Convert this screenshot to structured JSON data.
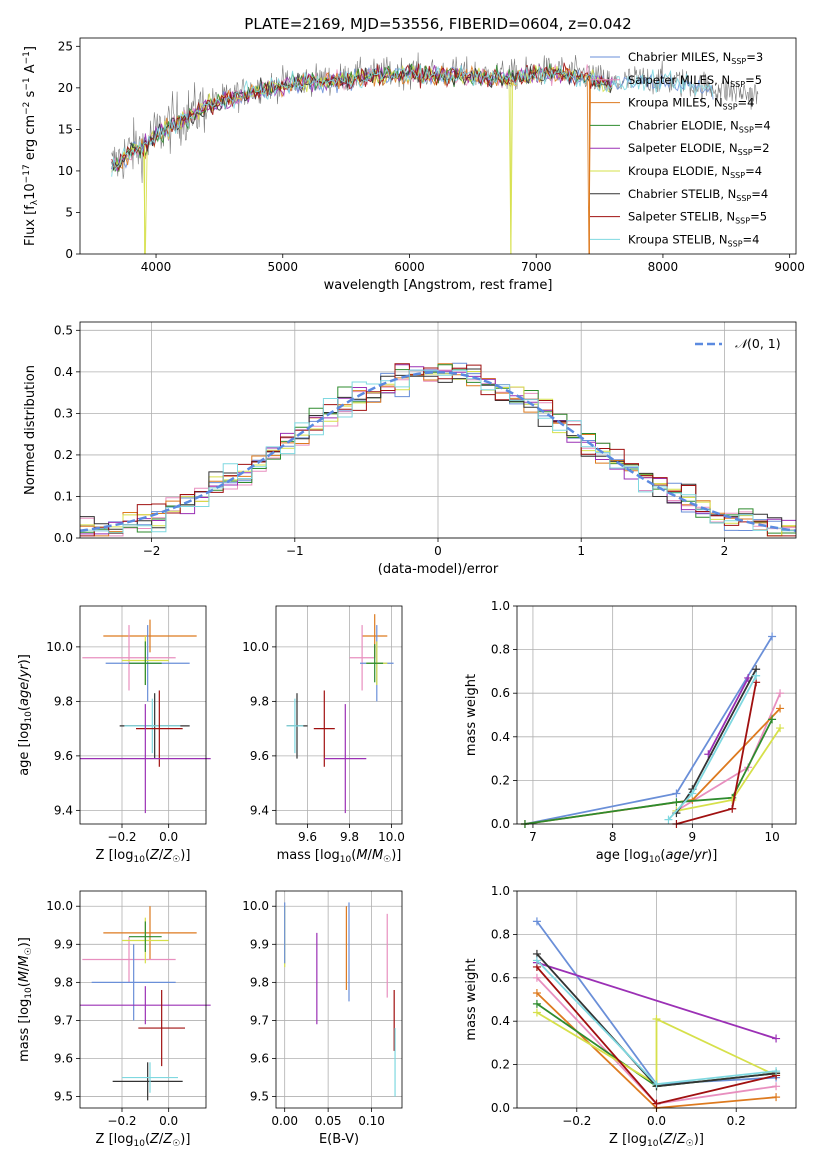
{
  "colors": {
    "Chabrier MILES": "#6a8fd8",
    "Salpeter MILES": "#e88fbf",
    "Kroupa MILES": "#dd7a1f",
    "Chabrier ELODIE": "#2e8b2e",
    "Salpeter ELODIE": "#9b30b5",
    "Kroupa ELODIE": "#d6e04a",
    "Chabrier STELIB": "#333333",
    "Salpeter STELIB": "#a01010",
    "Kroupa STELIB": "#7fd8e0"
  },
  "chart_data": [
    {
      "type": "line",
      "title": "PLATE=2169, MJD=53556, FIBERID=0604, z=0.042",
      "xlabel": "wavelength [Angstrom, rest frame]",
      "ylabel": "Flux [f_λ10^-17 erg cm^-2 s^-1 A^-1]",
      "xlim": [
        3400,
        9050
      ],
      "ylim": [
        0,
        26
      ],
      "xticks": [
        "4000",
        "5000",
        "6000",
        "7000",
        "8000",
        "9000"
      ],
      "yticks": [
        "0",
        "5",
        "10",
        "15",
        "20",
        "25"
      ],
      "legend_position": "top-right",
      "legend": [
        {
          "model": "Chabrier MILES",
          "label": "Chabrier MILES, N",
          "sub": "SSP",
          "n": "=3"
        },
        {
          "model": "Salpeter MILES",
          "label": "Salpeter MILES, N",
          "sub": "SSP",
          "n": "=5"
        },
        {
          "model": "Kroupa MILES",
          "label": "Kroupa MILES, N",
          "sub": "SSP",
          "n": "=4"
        },
        {
          "model": "Chabrier ELODIE",
          "label": "Chabrier ELODIE, N",
          "sub": "SSP",
          "n": "=4"
        },
        {
          "model": "Salpeter ELODIE",
          "label": "Salpeter ELODIE, N",
          "sub": "SSP",
          "n": "=2"
        },
        {
          "model": "Kroupa ELODIE",
          "label": "Kroupa ELODIE, N",
          "sub": "SSP",
          "n": "=4"
        },
        {
          "model": "Chabrier STELIB",
          "label": "Chabrier STELIB, N",
          "sub": "SSP",
          "n": "=4"
        },
        {
          "model": "Salpeter STELIB",
          "label": "Salpeter STELIB, N",
          "sub": "SSP",
          "n": "=5"
        },
        {
          "model": "Kroupa STELIB",
          "label": "Kroupa STELIB, N",
          "sub": "SSP",
          "n": "=4"
        }
      ],
      "spectrum_envelope": {
        "x": [
          3650,
          3720,
          3800,
          3900,
          4000,
          4100,
          4200,
          4300,
          4400,
          4600,
          4800,
          5000,
          5200,
          5400,
          5600,
          5800,
          6000,
          6200,
          6400,
          6600,
          6800,
          7000,
          7200,
          7400,
          7600,
          7800,
          8000,
          8200,
          8400,
          8600,
          8800
        ],
        "y": [
          10.5,
          11.5,
          12.5,
          13.0,
          14.5,
          15.5,
          16.5,
          17.0,
          18.0,
          19.0,
          20.0,
          20.5,
          21.0,
          21.0,
          21.5,
          21.8,
          22.0,
          21.8,
          21.8,
          21.5,
          21.5,
          22.0,
          22.0,
          21.5,
          20.5,
          21.0,
          21.0,
          20.5,
          20.0,
          19.5,
          19.0
        ]
      },
      "dips": [
        {
          "model": "Kroupa ELODIE",
          "x": 3910,
          "y": 0.0
        },
        {
          "model": "Kroupa ELODIE",
          "x": 6800,
          "y": 0.0
        },
        {
          "model": "Kroupa MILES",
          "x": 7420,
          "y": 0.0
        }
      ]
    },
    {
      "type": "histogram",
      "xlabel": "(data-model)/error",
      "ylabel": "Normed distribution",
      "xlim": [
        -2.5,
        2.5
      ],
      "ylim": [
        0,
        0.52
      ],
      "xticks": [
        "−2",
        "−1",
        "0",
        "1",
        "2"
      ],
      "yticks": [
        "0.0",
        "0.1",
        "0.2",
        "0.3",
        "0.4",
        "0.5"
      ],
      "bin_width": 0.1,
      "grid": true,
      "legend_label": "N(0,1)",
      "reference_curve": "normal(0,1)"
    },
    {
      "type": "scatter",
      "xlabel": "Z [log10(Z/Z☉)]",
      "ylabel": "age  [log10(age/yr)]",
      "xlim": [
        -0.38,
        0.16
      ],
      "ylim": [
        9.35,
        10.15
      ],
      "xticks": [
        "−0.2",
        "0.0"
      ],
      "yticks": [
        "9.4",
        "9.6",
        "9.8",
        "10.0"
      ],
      "points": [
        {
          "model": "Kroupa MILES",
          "x": -0.08,
          "y": 10.04,
          "xerr": 0.2,
          "yerr": 0.06
        },
        {
          "model": "Salpeter MILES",
          "x": -0.17,
          "y": 9.96,
          "xerr": 0.2,
          "yerr": 0.12
        },
        {
          "model": "Chabrier MILES",
          "x": -0.09,
          "y": 9.94,
          "xerr": 0.18,
          "yerr": 0.14
        },
        {
          "model": "Kroupa ELODIE",
          "x": -0.1,
          "y": 9.95,
          "xerr": 0.1,
          "yerr": 0.09
        },
        {
          "model": "Chabrier ELODIE",
          "x": -0.1,
          "y": 9.94,
          "xerr": 0.07,
          "yerr": 0.08
        },
        {
          "model": "Chabrier STELIB",
          "x": -0.06,
          "y": 9.71,
          "xerr": 0.15,
          "yerr": 0.12
        },
        {
          "model": "Kroupa STELIB",
          "x": -0.07,
          "y": 9.71,
          "xerr": 0.12,
          "yerr": 0.1
        },
        {
          "model": "Salpeter STELIB",
          "x": -0.04,
          "y": 9.7,
          "xerr": 0.1,
          "yerr": 0.14
        },
        {
          "model": "Salpeter ELODIE",
          "x": -0.1,
          "y": 9.59,
          "xerr": 0.28,
          "yerr": 0.2
        }
      ]
    },
    {
      "type": "scatter",
      "xlabel": "mass [log10(M/M☉)]",
      "ylabel": "",
      "xlim": [
        9.45,
        10.05
      ],
      "ylim": [
        9.35,
        10.15
      ],
      "xticks": [
        "9.6",
        "9.8",
        "10.0"
      ],
      "yticks": [
        "9.4",
        "9.6",
        "9.8",
        "10.0"
      ],
      "points": [
        {
          "model": "Kroupa MILES",
          "x": 9.92,
          "y": 10.04,
          "xerr": 0.06,
          "yerr": 0.08
        },
        {
          "model": "Salpeter MILES",
          "x": 9.86,
          "y": 9.96,
          "xerr": 0.06,
          "yerr": 0.12
        },
        {
          "model": "Chabrier MILES",
          "x": 9.93,
          "y": 9.94,
          "xerr": 0.08,
          "yerr": 0.14
        },
        {
          "model": "Kroupa ELODIE",
          "x": 9.93,
          "y": 9.94,
          "xerr": 0.05,
          "yerr": 0.08
        },
        {
          "model": "Chabrier ELODIE",
          "x": 9.92,
          "y": 9.94,
          "xerr": 0.04,
          "yerr": 0.07
        },
        {
          "model": "Chabrier STELIB",
          "x": 9.55,
          "y": 9.71,
          "xerr": 0.05,
          "yerr": 0.12
        },
        {
          "model": "Kroupa STELIB",
          "x": 9.54,
          "y": 9.71,
          "xerr": 0.04,
          "yerr": 0.1
        },
        {
          "model": "Salpeter STELIB",
          "x": 9.68,
          "y": 9.7,
          "xerr": 0.05,
          "yerr": 0.14
        },
        {
          "model": "Salpeter ELODIE",
          "x": 9.78,
          "y": 9.59,
          "xerr": 0.1,
          "yerr": 0.2
        }
      ]
    },
    {
      "type": "line",
      "xlabel": "age  [log10(age/yr)]",
      "ylabel": "mass weight",
      "xlim": [
        6.8,
        10.3
      ],
      "ylim": [
        0,
        1.0
      ],
      "xticks": [
        "7",
        "8",
        "9",
        "10"
      ],
      "yticks": [
        "0.0",
        "0.2",
        "0.4",
        "0.6",
        "0.8",
        "1.0"
      ],
      "grid": true,
      "series": [
        {
          "model": "Chabrier MILES",
          "x": [
            6.9,
            8.8,
            10.0
          ],
          "y": [
            0.0,
            0.14,
            0.86
          ]
        },
        {
          "model": "Salpeter MILES",
          "x": [
            8.8,
            9.7,
            10.1
          ],
          "y": [
            0.06,
            0.26,
            0.6
          ]
        },
        {
          "model": "Kroupa MILES",
          "x": [
            6.9,
            9.0,
            10.1
          ],
          "y": [
            0.0,
            0.11,
            0.53
          ]
        },
        {
          "model": "Chabrier ELODIE",
          "x": [
            6.9,
            8.8,
            9.5,
            10.0
          ],
          "y": [
            0.0,
            0.1,
            0.12,
            0.48
          ]
        },
        {
          "model": "Salpeter ELODIE",
          "x": [
            9.2,
            9.7
          ],
          "y": [
            0.32,
            0.67
          ]
        },
        {
          "model": "Kroupa ELODIE",
          "x": [
            8.8,
            9.5,
            10.1
          ],
          "y": [
            0.06,
            0.11,
            0.44
          ]
        },
        {
          "model": "Chabrier STELIB",
          "x": [
            8.8,
            9.0,
            9.8
          ],
          "y": [
            0.05,
            0.16,
            0.71
          ]
        },
        {
          "model": "Salpeter STELIB",
          "x": [
            8.8,
            9.5,
            9.8
          ],
          "y": [
            0.0,
            0.07,
            0.65
          ]
        },
        {
          "model": "Kroupa STELIB",
          "x": [
            8.7,
            9.0,
            9.8
          ],
          "y": [
            0.02,
            0.14,
            0.68
          ]
        }
      ]
    },
    {
      "type": "scatter",
      "xlabel": "Z [log10(Z/Z☉)]",
      "ylabel": "mass [log10(M/M☉)]",
      "xlim": [
        -0.38,
        0.16
      ],
      "ylim": [
        9.47,
        10.04
      ],
      "xticks": [
        "−0.2",
        "0.0"
      ],
      "yticks": [
        "9.5",
        "9.6",
        "9.7",
        "9.8",
        "9.9",
        "10.0"
      ],
      "points": [
        {
          "model": "Kroupa MILES",
          "x": -0.08,
          "y": 9.93,
          "xerr": 0.2,
          "yerr": 0.07
        },
        {
          "model": "Salpeter MILES",
          "x": -0.17,
          "y": 9.86,
          "xerr": 0.2,
          "yerr": 0.06
        },
        {
          "model": "Chabrier MILES",
          "x": -0.15,
          "y": 9.8,
          "xerr": 0.18,
          "yerr": 0.1
        },
        {
          "model": "Kroupa ELODIE",
          "x": -0.1,
          "y": 9.91,
          "xerr": 0.1,
          "yerr": 0.06
        },
        {
          "model": "Chabrier ELODIE",
          "x": -0.1,
          "y": 9.92,
          "xerr": 0.07,
          "yerr": 0.04
        },
        {
          "model": "Salpeter ELODIE",
          "x": -0.1,
          "y": 9.74,
          "xerr": 0.28,
          "yerr": 0.05
        },
        {
          "model": "Salpeter STELIB",
          "x": -0.03,
          "y": 9.68,
          "xerr": 0.1,
          "yerr": 0.1
        },
        {
          "model": "Chabrier STELIB",
          "x": -0.09,
          "y": 9.54,
          "xerr": 0.15,
          "yerr": 0.05
        },
        {
          "model": "Kroupa STELIB",
          "x": -0.08,
          "y": 9.55,
          "xerr": 0.12,
          "yerr": 0.04
        }
      ]
    },
    {
      "type": "scatter",
      "xlabel": "E(B-V)",
      "ylabel": "",
      "xlim": [
        -0.01,
        0.135
      ],
      "ylim": [
        9.47,
        10.04
      ],
      "xticks": [
        "0.00",
        "0.05",
        "0.10"
      ],
      "yticks": [
        "9.5",
        "9.6",
        "9.7",
        "9.8",
        "9.9",
        "10.0"
      ],
      "grid": true,
      "points": [
        {
          "model": "Kroupa ELODIE",
          "x": 0.0,
          "y": 9.92,
          "xerr": 0,
          "yerr": 0.08
        },
        {
          "model": "Chabrier MILES",
          "x": 0.0,
          "y": 9.93,
          "xerr": 0,
          "yerr": 0.08
        },
        {
          "model": "Salpeter ELODIE",
          "x": 0.037,
          "y": 9.81,
          "xerr": 0,
          "yerr": 0.12
        },
        {
          "model": "Kroupa MILES",
          "x": 0.071,
          "y": 9.89,
          "xerr": 0,
          "yerr": 0.11
        },
        {
          "model": "Chabrier MILES",
          "x": 0.074,
          "y": 9.88,
          "xerr": 0,
          "yerr": 0.13
        },
        {
          "model": "Salpeter MILES",
          "x": 0.118,
          "y": 9.87,
          "xerr": 0,
          "yerr": 0.11
        },
        {
          "model": "Salpeter STELIB",
          "x": 0.126,
          "y": 9.7,
          "xerr": 0,
          "yerr": 0.08
        },
        {
          "model": "Kroupa STELIB",
          "x": 0.127,
          "y": 9.59,
          "xerr": 0,
          "yerr": 0.09
        }
      ]
    },
    {
      "type": "line",
      "xlabel": "Z [log10(Z/Z☉)]",
      "ylabel": "mass weight",
      "xlim": [
        -0.35,
        0.35
      ],
      "ylim": [
        0,
        1.0
      ],
      "xticks": [
        "−0.2",
        "0.0",
        "0.2"
      ],
      "yticks": [
        "0.0",
        "0.2",
        "0.4",
        "0.6",
        "0.8",
        "1.0"
      ],
      "grid": true,
      "series": [
        {
          "model": "Chabrier MILES",
          "x": [
            -0.3,
            0.0,
            0.3
          ],
          "y": [
            0.86,
            0.11,
            0.14
          ]
        },
        {
          "model": "Salpeter MILES",
          "x": [
            -0.3,
            0.0,
            0.3
          ],
          "y": [
            0.6,
            0.02,
            0.1
          ]
        },
        {
          "model": "Kroupa MILES",
          "x": [
            -0.3,
            0.0,
            0.3
          ],
          "y": [
            0.53,
            0.0,
            0.05
          ]
        },
        {
          "model": "Chabrier ELODIE",
          "x": [
            -0.3,
            0.0,
            0.3
          ],
          "y": [
            0.48,
            0.1,
            0.16
          ]
        },
        {
          "model": "Salpeter ELODIE",
          "x": [
            -0.3,
            0.3
          ],
          "y": [
            0.67,
            0.32
          ]
        },
        {
          "model": "Kroupa ELODIE",
          "x": [
            -0.3,
            0.0,
            0.0,
            0.3
          ],
          "y": [
            0.44,
            0.11,
            0.41,
            0.15
          ]
        },
        {
          "model": "Chabrier STELIB",
          "x": [
            -0.3,
            0.0,
            0.3
          ],
          "y": [
            0.71,
            0.1,
            0.16
          ]
        },
        {
          "model": "Salpeter STELIB",
          "x": [
            -0.3,
            0.0,
            0.3
          ],
          "y": [
            0.65,
            0.02,
            0.15
          ]
        },
        {
          "model": "Kroupa STELIB",
          "x": [
            -0.3,
            0.0,
            0.3
          ],
          "y": [
            0.68,
            0.11,
            0.17
          ]
        }
      ]
    }
  ]
}
